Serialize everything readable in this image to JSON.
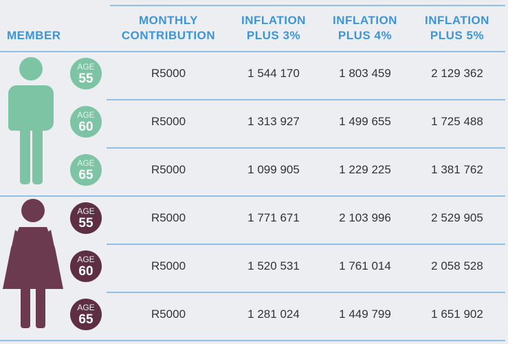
{
  "header": {
    "member": "MEMBER",
    "columns": [
      [
        "MONTHLY",
        "CONTRIBUTION"
      ],
      [
        "INFLATION",
        "PLUS 3%"
      ],
      [
        "INFLATION",
        "PLUS 4%"
      ],
      [
        "INFLATION",
        "PLUS 5%"
      ]
    ]
  },
  "table": {
    "rows": [
      {
        "age_label": "AGE",
        "age": "55",
        "contribution": "R5000",
        "values": [
          "1 544 170",
          "1 803 459",
          "2 129 362"
        ]
      },
      {
        "age_label": "AGE",
        "age": "60",
        "contribution": "R5000",
        "values": [
          "1 313 927",
          "1 499 655",
          "1 725 488"
        ]
      },
      {
        "age_label": "AGE",
        "age": "65",
        "contribution": "R5000",
        "values": [
          "1 099 905",
          "1 229 225",
          "1 381 762"
        ]
      },
      {
        "age_label": "AGE",
        "age": "55",
        "contribution": "R5000",
        "values": [
          "1 771 671",
          "2 103 996",
          "2 529 905"
        ]
      },
      {
        "age_label": "AGE",
        "age": "60",
        "contribution": "R5000",
        "values": [
          "1 520 531",
          "1 761 014",
          "2 058 528"
        ]
      },
      {
        "age_label": "AGE",
        "age": "65",
        "contribution": "R5000",
        "values": [
          "1 281 024",
          "1 449 799",
          "1 651 902"
        ]
      }
    ]
  }
}
